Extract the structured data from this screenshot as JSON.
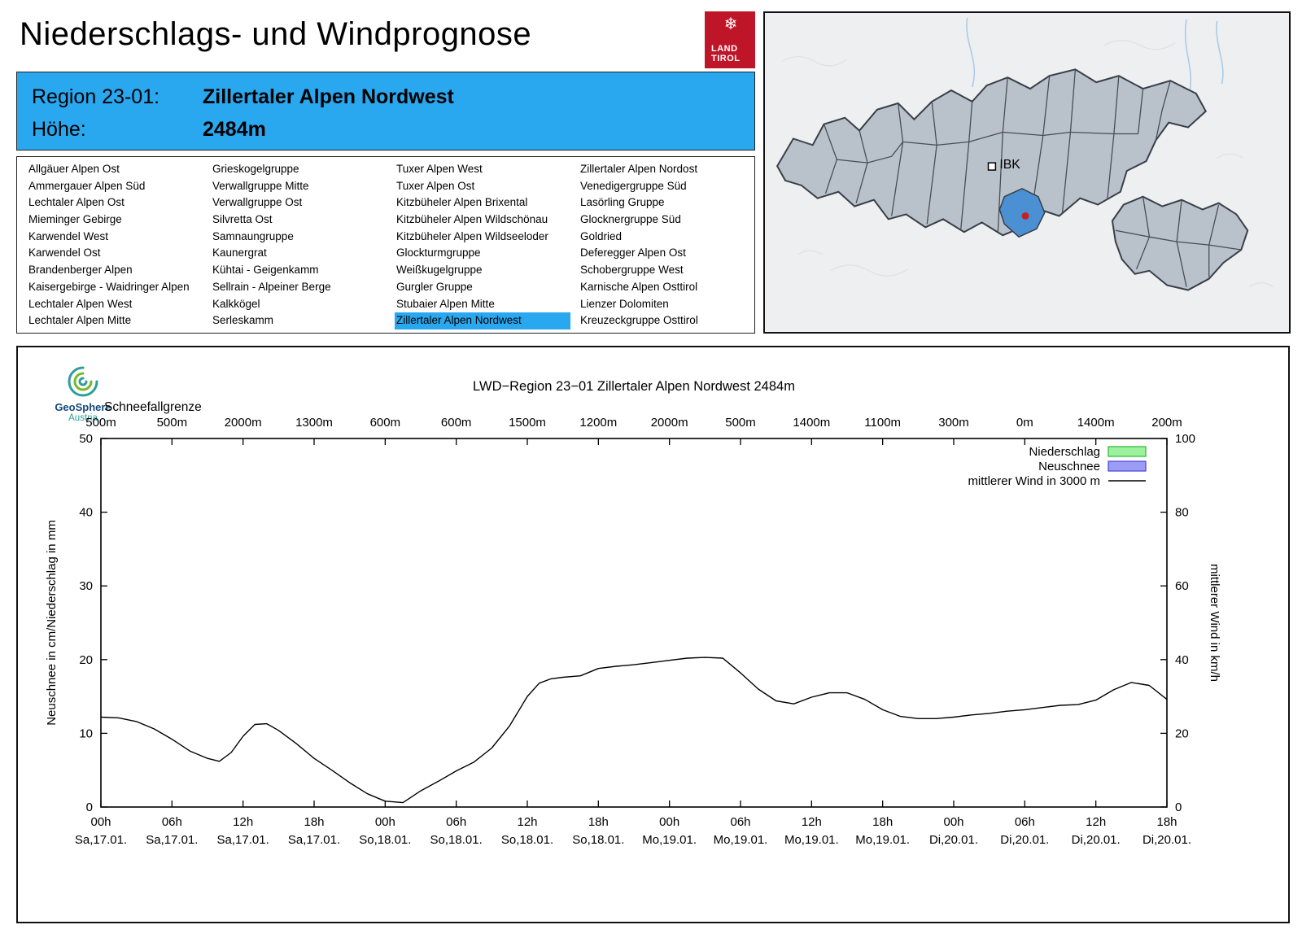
{
  "page": {
    "title": "Niederschlags- und Windprognose"
  },
  "logo": {
    "land_tirol": {
      "line1": "LAND",
      "line2": "TIROL"
    }
  },
  "region_header": {
    "region_label": "Region 23-01:",
    "region_value": "Zillertaler Alpen Nordwest",
    "altitude_label": "Höhe:",
    "altitude_value": "2484m",
    "bg_color": "#29a7ef"
  },
  "region_list": {
    "selected": "Zillertaler Alpen Nordwest",
    "highlight_color": "#29a7ef",
    "columns": [
      [
        "Allgäuer Alpen Ost",
        "Ammergauer Alpen Süd",
        "Lechtaler Alpen Ost",
        "Mieminger Gebirge",
        "Karwendel West",
        "Karwendel Ost",
        "Brandenberger Alpen",
        "Kaisergebirge - Waidringer Alpen",
        "Lechtaler Alpen West",
        "Lechtaler Alpen Mitte"
      ],
      [
        "Grieskogelgruppe",
        "Verwallgruppe Mitte",
        "Verwallgruppe Ost",
        "Silvretta Ost",
        "Samnaungruppe",
        "Kaunergrat",
        "Kühtai - Geigenkamm",
        "Sellrain - Alpeiner Berge",
        "Kalkkögel",
        "Serleskamm"
      ],
      [
        "Tuxer Alpen West",
        "Tuxer Alpen Ost",
        "Kitzbüheler Alpen Brixental",
        "Kitzbüheler Alpen Wildschönau",
        "Kitzbüheler Alpen Wildseeloder",
        "Glockturmgruppe",
        "Weißkugelgruppe",
        "Gurgler Gruppe",
        "Stubaier Alpen Mitte",
        "Zillertaler Alpen Nordwest"
      ],
      [
        "Zillertaler Alpen Nordost",
        "Venedigergruppe Süd",
        "Lasörling Gruppe",
        "Glocknergruppe Süd",
        "Goldried",
        "Deferegger Alpen Ost",
        "Schobergruppe West",
        "Karnische Alpen Osttirol",
        "Lienzer Dolomiten",
        "Kreuzeckgruppe Osttirol"
      ]
    ]
  },
  "map": {
    "city_label": "IBK",
    "highlight_color": "#4a90d2",
    "marker_color": "#c32222"
  },
  "geosphere_logo": {
    "line1": "GeoSphere",
    "line2": "Austria"
  },
  "chart_data": {
    "type": "line",
    "title": "LWD−Region 23−01 Zillertaler Alpen Nordwest 2484m",
    "snowline_label": "Schneefallgrenze",
    "snowline_values": [
      "500m",
      "500m",
      "2000m",
      "1300m",
      "600m",
      "600m",
      "1500m",
      "1200m",
      "2000m",
      "500m",
      "1400m",
      "1100m",
      "300m",
      "0m",
      "1400m",
      "200m"
    ],
    "ylabel_left": "Neuschnee in cm/Niederschlag in mm",
    "ylabel_right": "mittlerer Wind in km/h",
    "ylim_left": [
      0,
      50
    ],
    "ylim_right": [
      0,
      100
    ],
    "yticks_left": [
      0,
      10,
      20,
      30,
      40,
      50
    ],
    "yticks_right": [
      0,
      20,
      40,
      60,
      80,
      100
    ],
    "x_hours_range": [
      0,
      90
    ],
    "xtick_step_hours": 6,
    "grid": false,
    "legend_position": "top-right",
    "xticks": [
      {
        "hour": "00h",
        "date": "Sa,17.01."
      },
      {
        "hour": "06h",
        "date": "Sa,17.01."
      },
      {
        "hour": "12h",
        "date": "Sa,17.01."
      },
      {
        "hour": "18h",
        "date": "Sa,17.01."
      },
      {
        "hour": "00h",
        "date": "So,18.01."
      },
      {
        "hour": "06h",
        "date": "So,18.01."
      },
      {
        "hour": "12h",
        "date": "So,18.01."
      },
      {
        "hour": "18h",
        "date": "So,18.01."
      },
      {
        "hour": "00h",
        "date": "Mo,19.01."
      },
      {
        "hour": "06h",
        "date": "Mo,19.01."
      },
      {
        "hour": "12h",
        "date": "Mo,19.01."
      },
      {
        "hour": "18h",
        "date": "Mo,19.01."
      },
      {
        "hour": "00h",
        "date": "Di,20.01."
      },
      {
        "hour": "06h",
        "date": "Di,20.01."
      },
      {
        "hour": "12h",
        "date": "Di,20.01."
      },
      {
        "hour": "18h",
        "date": "Di,20.01."
      }
    ],
    "legend": [
      {
        "label": "Niederschlag",
        "type": "box",
        "color": "#9cf29c",
        "border": "#2fb52f"
      },
      {
        "label": "Neuschnee",
        "type": "box",
        "color": "#9c9cf5",
        "border": "#4444dd"
      },
      {
        "label": "mittlerer Wind in 3000 m",
        "type": "line",
        "color": "#000000"
      }
    ],
    "series": [
      {
        "name": "mittlerer Wind in 3000 m",
        "axis": "right",
        "x": [
          0,
          1.5,
          3,
          4.5,
          6,
          7.5,
          9,
          10,
          11,
          12,
          13,
          14,
          15,
          16.5,
          18,
          19.5,
          21,
          22.5,
          24,
          25.5,
          27,
          28.5,
          30,
          31.5,
          33,
          34.5,
          36,
          37,
          38,
          39,
          40.5,
          42,
          43.5,
          45,
          46.5,
          48,
          49.5,
          51,
          52.5,
          54,
          55.5,
          57,
          58.5,
          60,
          61.5,
          63,
          64.5,
          66,
          67.5,
          69,
          70.5,
          72,
          73.5,
          75,
          76.5,
          78,
          79.5,
          81,
          82.5,
          84,
          85.5,
          87,
          88.5,
          90
        ],
        "wind_kmh": [
          24.4,
          24.2,
          23.2,
          21.2,
          18.4,
          15.2,
          13.2,
          12.4,
          14.8,
          19.2,
          22.4,
          22.6,
          20.8,
          17.2,
          13.2,
          10.0,
          6.6,
          3.6,
          1.6,
          1.2,
          4.4,
          7.0,
          9.8,
          12.2,
          16.0,
          22.0,
          30.0,
          33.6,
          34.8,
          35.2,
          35.6,
          37.6,
          38.2,
          38.6,
          39.2,
          39.8,
          40.4,
          40.6,
          40.4,
          36.4,
          32.0,
          28.8,
          28.0,
          29.8,
          31.0,
          31.0,
          29.2,
          26.4,
          24.6,
          24.0,
          24.0,
          24.4,
          25.0,
          25.4,
          26.0,
          26.4,
          27.0,
          27.6,
          27.8,
          29.0,
          31.8,
          33.8,
          33.0,
          29.2
        ]
      }
    ]
  }
}
